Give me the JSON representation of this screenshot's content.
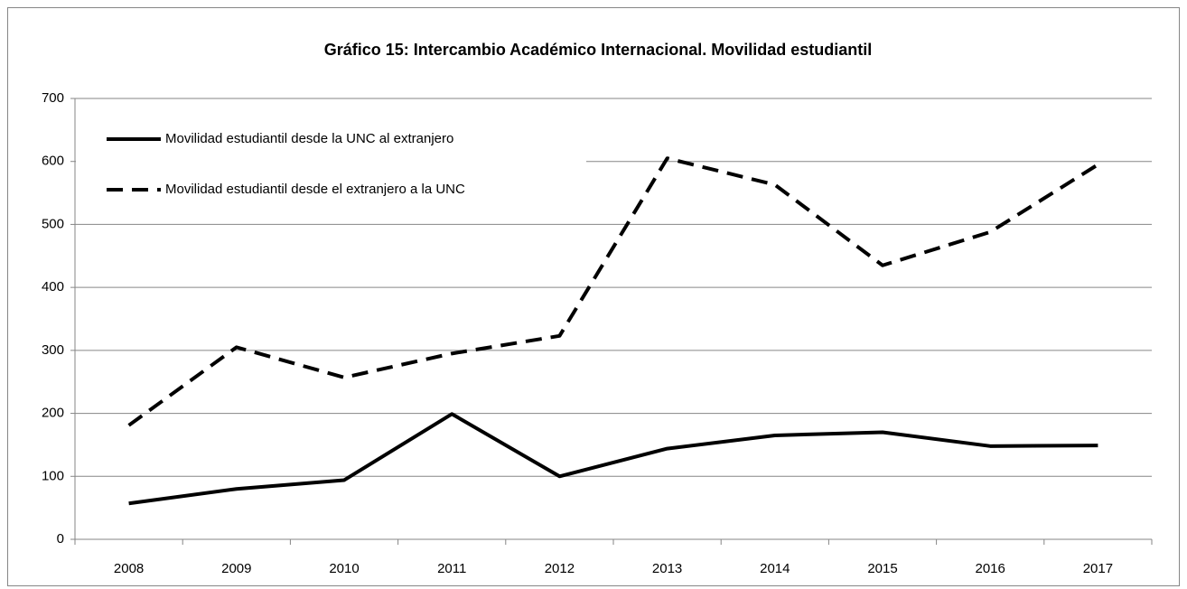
{
  "chart_data": {
    "type": "line",
    "title": "Gráfico 15: Intercambio Académico Internacional. Movilidad estudiantil",
    "categories": [
      "2008",
      "2009",
      "2010",
      "2011",
      "2012",
      "2013",
      "2014",
      "2015",
      "2016",
      "2017"
    ],
    "series": [
      {
        "name": "Movilidad estudiantil desde la UNC al extranjero",
        "color": "#000000",
        "dash": "solid",
        "values": [
          57,
          80,
          94,
          199,
          100,
          144,
          165,
          170,
          148,
          149
        ]
      },
      {
        "name": "Movilidad estudiantil desde el extranjero a la UNC",
        "color": "#000000",
        "dash": "dashed",
        "values": [
          181,
          305,
          257,
          295,
          323,
          605,
          563,
          435,
          488,
          595
        ]
      }
    ],
    "ylim": [
      0,
      700
    ],
    "yticks": [
      0,
      100,
      200,
      300,
      400,
      500,
      600,
      700
    ],
    "grid": true,
    "legend": "top-left"
  }
}
